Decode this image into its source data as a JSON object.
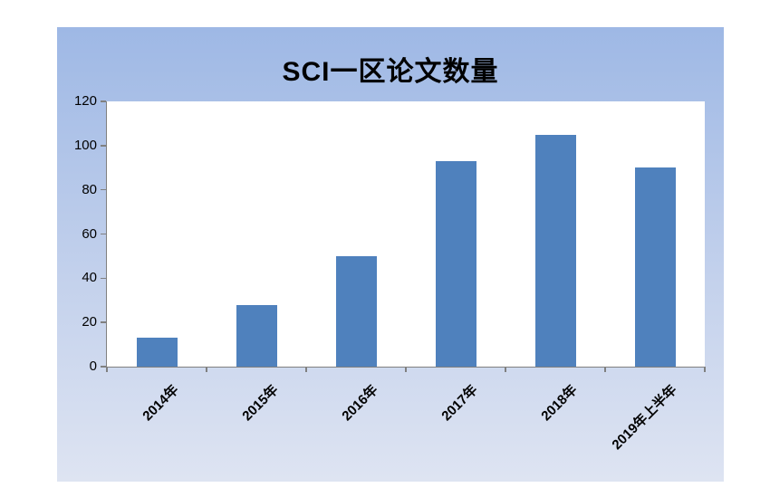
{
  "chart_data": {
    "type": "bar",
    "title": "SCI一区论文数量",
    "categories": [
      "2014年",
      "2015年",
      "2016年",
      "2017年",
      "2018年",
      "2019年上半年"
    ],
    "values": [
      13,
      28,
      50,
      93,
      105,
      90
    ],
    "xlabel": "",
    "ylabel": "",
    "ylim": [
      0,
      120
    ],
    "yticks": [
      0,
      20,
      40,
      60,
      80,
      100,
      120
    ],
    "grid": false,
    "legend_position": "none",
    "bar_color": "#4F81BD",
    "axis_color": "#808080",
    "card_gradient_top": "#9EB8E5",
    "card_gradient_bottom": "#DEE4F2",
    "plot_background": "#FFFFFF",
    "title_color": "#000000",
    "label_color": "#000000"
  }
}
